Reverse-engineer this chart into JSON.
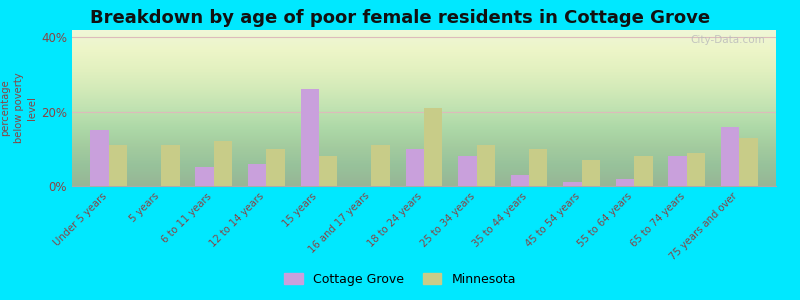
{
  "title": "Breakdown by age of poor female residents in Cottage Grove",
  "categories": [
    "Under 5 years",
    "5 years",
    "6 to 11 years",
    "12 to 14 years",
    "15 years",
    "16 and 17 years",
    "18 to 24 years",
    "25 to 34 years",
    "35 to 44 years",
    "45 to 54 years",
    "55 to 64 years",
    "65 to 74 years",
    "75 years and over"
  ],
  "cg_values": [
    15,
    0,
    5,
    6,
    26,
    0,
    10,
    8,
    3,
    1,
    2,
    8,
    16
  ],
  "mn_values": [
    11,
    11,
    12,
    10,
    8,
    11,
    21,
    11,
    10,
    7,
    8,
    9,
    13
  ],
  "ylabel": "percentage\nbelow poverty\nlevel",
  "ylim": [
    0,
    42
  ],
  "yticks": [
    0,
    20,
    40
  ],
  "ytick_labels": [
    "0%",
    "20%",
    "40%"
  ],
  "cg_color": "#c9a0dc",
  "mn_color": "#c8cc88",
  "background_fig": "#00e8ff",
  "bar_width": 0.35,
  "legend_cg": "Cottage Grove",
  "legend_mn": "Minnesota",
  "title_fontsize": 13,
  "watermark": "City-Data.com",
  "tick_color": "#884444",
  "grid_color": "#ddbbbb"
}
